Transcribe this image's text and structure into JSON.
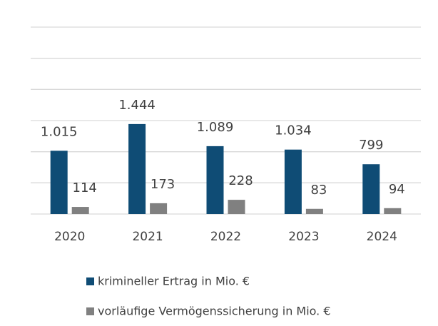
{
  "chart_data": {
    "type": "bar",
    "categories": [
      "2020",
      "2021",
      "2022",
      "2023",
      "2024"
    ],
    "series": [
      {
        "name": "krimineller Ertrag in Mio. €",
        "color": "#0f4c75",
        "values": [
          1015,
          1444,
          1089,
          1034,
          799
        ],
        "value_labels": [
          "1.015",
          "1.444",
          "1.089",
          "1.034",
          "799"
        ]
      },
      {
        "name": "vorläufige Vermögenssicherung in Mio. €",
        "color": "#808080",
        "values": [
          114,
          173,
          228,
          83,
          94
        ]
      }
    ],
    "ylim": [
      0,
      3000
    ],
    "yticks": [
      0,
      500,
      1000,
      1500,
      2000,
      2500,
      3000
    ],
    "grid": true,
    "legend": "bottom"
  }
}
